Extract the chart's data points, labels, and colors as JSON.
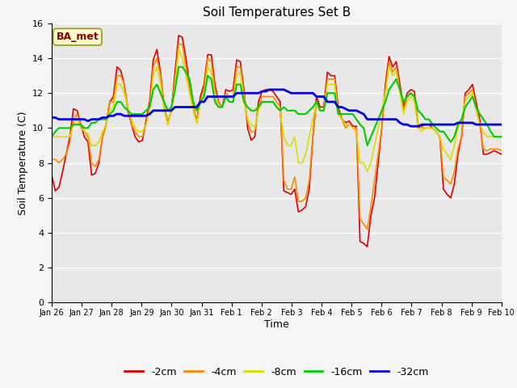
{
  "title": "Soil Temperatures Set B",
  "xlabel": "Time",
  "ylabel": "Soil Temperature (C)",
  "annotation": "BA_met",
  "ylim": [
    0,
    16
  ],
  "yticks": [
    0,
    2,
    4,
    6,
    8,
    10,
    12,
    14,
    16
  ],
  "xtick_labels": [
    "Jan 26",
    "Jan 27",
    "Jan 28",
    "Jan 29",
    "Jan 30",
    "Jan 31",
    "Feb 1",
    "Feb 2",
    "Feb 3",
    "Feb 4",
    "Feb 5",
    "Feb 6",
    "Feb 7",
    "Feb 8",
    "Feb 9",
    "Feb 10"
  ],
  "colors": {
    "-2cm": "#dd0000",
    "-4cm": "#ff8800",
    "-8cm": "#dddd00",
    "-16cm": "#00cc00",
    "-32cm": "#0000dd"
  },
  "line_widths": {
    "-2cm": 1.2,
    "-4cm": 1.2,
    "-8cm": 1.2,
    "-16cm": 1.5,
    "-32cm": 2.0
  },
  "bg_color": "#e8e8e8",
  "fig_bg_color": "#f5f5f5",
  "grid_color": "#ffffff",
  "series": {
    "-2cm": [
      7.3,
      6.4,
      6.6,
      7.5,
      8.5,
      9.5,
      11.1,
      11.0,
      10.2,
      9.5,
      9.2,
      7.3,
      7.4,
      8.0,
      9.5,
      10.2,
      11.5,
      11.8,
      13.5,
      13.3,
      12.5,
      11.0,
      10.2,
      9.5,
      9.2,
      9.3,
      10.4,
      11.5,
      13.9,
      14.5,
      13.2,
      11.2,
      10.3,
      11.0,
      13.2,
      15.3,
      15.2,
      14.0,
      12.5,
      11.2,
      10.4,
      11.8,
      12.5,
      14.2,
      14.2,
      12.5,
      11.5,
      11.2,
      12.2,
      12.1,
      12.2,
      13.9,
      13.8,
      12.2,
      10.0,
      9.3,
      9.5,
      11.5,
      12.1,
      12.2,
      12.2,
      12.1,
      11.8,
      11.5,
      6.4,
      6.3,
      6.2,
      6.5,
      5.2,
      5.3,
      5.5,
      6.5,
      9.5,
      11.8,
      11.2,
      11.2,
      13.2,
      13.0,
      13.0,
      11.2,
      10.5,
      10.3,
      10.4,
      10.1,
      10.1,
      3.5,
      3.4,
      3.2,
      5.0,
      6.0,
      8.0,
      10.0,
      12.5,
      14.1,
      13.5,
      13.8,
      12.5,
      11.2,
      12.0,
      12.2,
      12.1,
      10.0,
      10.1,
      10.2,
      10.2,
      10.0,
      9.8,
      9.5,
      6.5,
      6.2,
      6.0,
      6.8,
      8.5,
      9.5,
      12.0,
      12.2,
      12.5,
      11.5,
      10.5,
      8.5,
      8.5,
      8.6,
      8.7,
      8.6,
      8.5
    ],
    "-4cm": [
      8.2,
      8.2,
      8.0,
      8.2,
      8.5,
      9.2,
      10.5,
      10.8,
      10.2,
      9.8,
      9.5,
      8.0,
      7.8,
      8.2,
      9.5,
      10.2,
      11.5,
      11.5,
      13.0,
      13.0,
      12.5,
      11.2,
      10.2,
      9.8,
      9.5,
      9.5,
      10.2,
      11.2,
      13.5,
      14.0,
      13.0,
      11.2,
      10.2,
      11.0,
      12.8,
      14.8,
      14.8,
      13.5,
      12.2,
      11.2,
      10.3,
      11.5,
      12.2,
      14.0,
      13.8,
      12.2,
      11.5,
      11.2,
      12.0,
      11.8,
      11.8,
      13.5,
      13.5,
      12.0,
      10.3,
      9.8,
      9.8,
      11.2,
      11.8,
      11.8,
      11.8,
      11.8,
      11.5,
      11.2,
      7.0,
      6.5,
      6.5,
      7.2,
      5.8,
      5.8,
      6.0,
      7.0,
      9.5,
      11.5,
      11.0,
      11.0,
      12.8,
      12.8,
      12.8,
      11.0,
      10.5,
      10.0,
      10.2,
      10.0,
      10.0,
      4.8,
      4.5,
      4.2,
      5.5,
      7.0,
      8.5,
      10.0,
      12.2,
      13.8,
      13.2,
      13.5,
      12.2,
      11.0,
      11.8,
      12.0,
      11.8,
      10.2,
      10.0,
      10.0,
      10.0,
      10.0,
      9.8,
      9.5,
      7.2,
      7.0,
      6.8,
      7.5,
      8.8,
      9.5,
      11.8,
      12.0,
      12.2,
      11.2,
      10.2,
      8.8,
      8.7,
      8.8,
      8.8,
      8.8,
      8.7
    ],
    "-8cm": [
      9.5,
      9.5,
      9.5,
      9.5,
      9.5,
      9.5,
      10.2,
      10.5,
      10.0,
      9.8,
      9.7,
      9.0,
      9.0,
      9.2,
      9.8,
      10.2,
      11.0,
      11.2,
      12.5,
      12.5,
      12.0,
      11.2,
      10.5,
      10.0,
      9.8,
      9.8,
      10.2,
      11.0,
      13.0,
      13.5,
      12.5,
      11.0,
      10.2,
      11.0,
      12.5,
      14.5,
      14.0,
      13.0,
      12.0,
      11.0,
      10.3,
      11.5,
      12.0,
      13.5,
      13.2,
      11.8,
      11.2,
      11.2,
      11.8,
      11.5,
      11.5,
      13.0,
      13.2,
      11.5,
      10.5,
      10.2,
      10.0,
      11.0,
      11.5,
      11.5,
      11.5,
      11.5,
      11.2,
      11.0,
      9.5,
      9.0,
      9.0,
      9.5,
      8.0,
      8.0,
      8.5,
      9.5,
      10.5,
      11.5,
      11.0,
      11.0,
      12.5,
      12.5,
      12.5,
      10.8,
      10.5,
      10.2,
      10.2,
      10.0,
      9.8,
      8.0,
      8.0,
      7.5,
      8.0,
      9.0,
      10.0,
      11.0,
      12.0,
      13.5,
      13.0,
      13.2,
      12.0,
      10.8,
      11.5,
      11.8,
      11.5,
      10.0,
      9.8,
      10.0,
      10.0,
      10.0,
      9.8,
      9.5,
      8.8,
      8.5,
      8.2,
      9.0,
      10.0,
      10.5,
      11.5,
      11.8,
      12.0,
      11.0,
      10.2,
      9.8,
      9.5,
      9.5,
      9.5,
      9.5,
      9.5
    ],
    "-16cm": [
      9.5,
      9.8,
      10.0,
      10.0,
      10.0,
      10.0,
      10.2,
      10.2,
      10.2,
      10.0,
      10.0,
      10.3,
      10.3,
      10.5,
      10.5,
      10.5,
      10.8,
      11.0,
      11.5,
      11.5,
      11.2,
      11.0,
      10.8,
      10.8,
      10.8,
      10.8,
      11.0,
      11.2,
      12.2,
      12.5,
      12.0,
      11.5,
      11.0,
      11.2,
      12.2,
      13.5,
      13.5,
      13.2,
      12.8,
      11.5,
      11.0,
      11.5,
      11.8,
      13.0,
      12.8,
      11.5,
      11.2,
      11.2,
      11.8,
      11.5,
      11.5,
      12.5,
      12.5,
      11.5,
      11.2,
      11.0,
      11.0,
      11.2,
      11.5,
      11.5,
      11.5,
      11.5,
      11.2,
      11.0,
      11.2,
      11.0,
      11.0,
      11.0,
      10.8,
      10.8,
      10.8,
      11.0,
      11.2,
      11.5,
      11.0,
      11.0,
      12.0,
      12.0,
      12.0,
      10.8,
      10.8,
      10.8,
      10.8,
      10.8,
      10.5,
      10.2,
      10.0,
      9.0,
      9.5,
      10.0,
      10.5,
      11.0,
      11.5,
      12.2,
      12.5,
      12.8,
      12.2,
      11.5,
      11.8,
      12.0,
      11.8,
      11.0,
      10.8,
      10.5,
      10.5,
      10.2,
      10.0,
      9.8,
      9.8,
      9.5,
      9.2,
      9.5,
      10.2,
      10.5,
      11.2,
      11.5,
      11.8,
      11.2,
      10.8,
      10.5,
      10.2,
      9.8,
      9.5,
      9.5,
      9.5
    ],
    "-32cm": [
      10.6,
      10.6,
      10.5,
      10.5,
      10.5,
      10.5,
      10.5,
      10.5,
      10.5,
      10.5,
      10.4,
      10.5,
      10.5,
      10.5,
      10.6,
      10.6,
      10.7,
      10.7,
      10.8,
      10.8,
      10.7,
      10.7,
      10.7,
      10.7,
      10.7,
      10.7,
      10.7,
      10.8,
      11.0,
      11.0,
      11.0,
      11.0,
      11.0,
      11.0,
      11.2,
      11.2,
      11.2,
      11.2,
      11.2,
      11.2,
      11.2,
      11.5,
      11.5,
      11.8,
      11.8,
      11.8,
      11.8,
      11.8,
      11.8,
      11.8,
      11.8,
      12.0,
      12.0,
      12.0,
      12.0,
      12.0,
      12.0,
      12.0,
      12.1,
      12.1,
      12.2,
      12.2,
      12.2,
      12.2,
      12.2,
      12.1,
      12.0,
      12.0,
      12.0,
      12.0,
      12.0,
      12.0,
      12.0,
      11.8,
      11.8,
      11.8,
      11.5,
      11.5,
      11.5,
      11.2,
      11.2,
      11.1,
      11.0,
      11.0,
      11.0,
      10.9,
      10.8,
      10.5,
      10.5,
      10.5,
      10.5,
      10.5,
      10.5,
      10.5,
      10.5,
      10.5,
      10.3,
      10.2,
      10.2,
      10.1,
      10.1,
      10.1,
      10.2,
      10.2,
      10.2,
      10.2,
      10.2,
      10.2,
      10.2,
      10.2,
      10.2,
      10.2,
      10.3,
      10.3,
      10.3,
      10.3,
      10.3,
      10.2,
      10.2,
      10.2,
      10.2,
      10.2,
      10.2,
      10.2,
      10.2
    ]
  }
}
